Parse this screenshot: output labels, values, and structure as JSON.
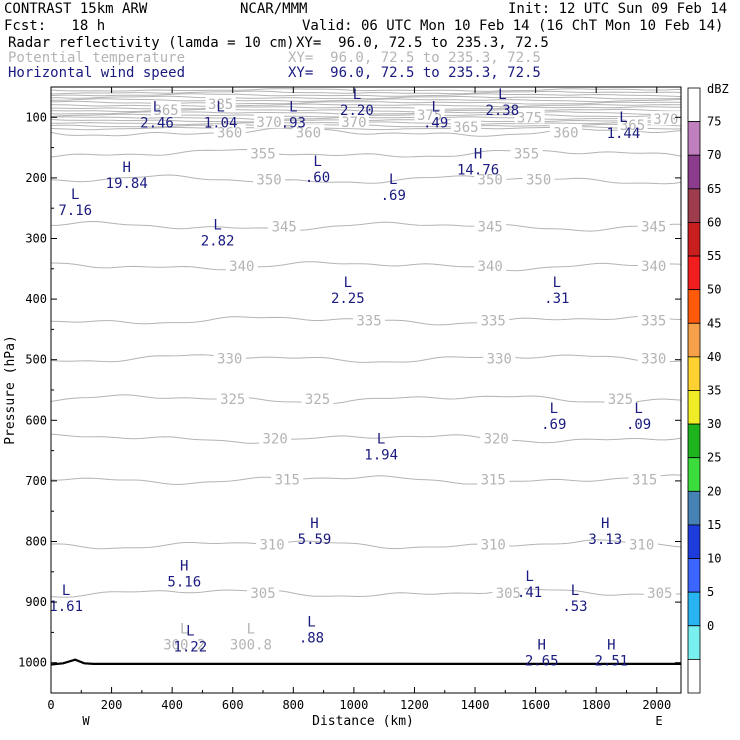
{
  "header": {
    "left_line1": "CONTRAST 15km ARW",
    "center_line1": "NCAR/MMM",
    "right_line1": "Init: 12 UTC Sun 09 Feb 14",
    "left_line2": "Fcst:   18 h",
    "right_line2": "Valid: 06 UTC Mon 10 Feb 14 (16 ChT Mon 10 Feb 14)"
  },
  "fields": [
    {
      "name": "Radar reflectivity (lamda = 10 cm)",
      "xy": "XY=  96.0, 72.5 to 235.3, 72.5",
      "color": "#000000"
    },
    {
      "name": "Potential temperature",
      "xy": "XY=  96.0, 72.5 to 235.3, 72.5",
      "color": "#b4b4b4"
    },
    {
      "name": "Horizontal wind speed",
      "xy": "XY=  96.0, 72.5 to 235.3, 72.5",
      "color": "#1a1a80"
    }
  ],
  "chart_data": {
    "type": "cross-section",
    "xlabel": "Distance (km)",
    "ylabel": "Pressure (hPa)",
    "xlim": [
      0,
      2080
    ],
    "ylim": [
      1050,
      50
    ],
    "x_ticks": [
      0,
      200,
      400,
      600,
      800,
      1000,
      1200,
      1400,
      1600,
      1800,
      2000
    ],
    "y_ticks": [
      100,
      200,
      300,
      400,
      500,
      600,
      700,
      800,
      900,
      1000
    ],
    "x_end_labels": {
      "left": "W",
      "right": "E"
    },
    "isentropes": [
      {
        "theta": 360,
        "p": 125,
        "labels": [
          {
            "x": 590,
            "text": "360"
          },
          {
            "x": 850,
            "text": "360"
          },
          {
            "x": 1700,
            "text": "360"
          }
        ]
      },
      {
        "theta": 355,
        "p": 160,
        "labels": [
          {
            "x": 700,
            "text": "355"
          },
          {
            "x": 1570,
            "text": "355"
          }
        ]
      },
      {
        "theta": 350,
        "p": 203,
        "labels": [
          {
            "x": 720,
            "text": "350"
          },
          {
            "x": 1450,
            "text": "350"
          },
          {
            "x": 1610,
            "text": "350"
          }
        ]
      },
      {
        "theta": 345,
        "p": 280,
        "labels": [
          {
            "x": 770,
            "text": "345"
          },
          {
            "x": 1450,
            "text": "345"
          },
          {
            "x": 1990,
            "text": "345"
          }
        ]
      },
      {
        "theta": 340,
        "p": 345,
        "labels": [
          {
            "x": 630,
            "text": "340"
          },
          {
            "x": 1450,
            "text": "340"
          },
          {
            "x": 1990,
            "text": "340"
          }
        ]
      },
      {
        "theta": 335,
        "p": 435,
        "labels": [
          {
            "x": 1050,
            "text": "335"
          },
          {
            "x": 1460,
            "text": "335"
          },
          {
            "x": 1990,
            "text": "335"
          }
        ]
      },
      {
        "theta": 330,
        "p": 498,
        "labels": [
          {
            "x": 590,
            "text": "330"
          },
          {
            "x": 1480,
            "text": "330"
          },
          {
            "x": 1990,
            "text": "330"
          }
        ]
      },
      {
        "theta": 325,
        "p": 565,
        "labels": [
          {
            "x": 600,
            "text": "325"
          },
          {
            "x": 880,
            "text": "325"
          },
          {
            "x": 1880,
            "text": "325"
          }
        ]
      },
      {
        "theta": 320,
        "p": 630,
        "labels": [
          {
            "x": 740,
            "text": "320"
          },
          {
            "x": 1470,
            "text": "320"
          }
        ]
      },
      {
        "theta": 315,
        "p": 698,
        "labels": [
          {
            "x": 780,
            "text": "315"
          },
          {
            "x": 1460,
            "text": "315"
          },
          {
            "x": 1960,
            "text": "315"
          }
        ]
      },
      {
        "theta": 310,
        "p": 805,
        "labels": [
          {
            "x": 730,
            "text": "310"
          },
          {
            "x": 1460,
            "text": "310"
          },
          {
            "x": 1950,
            "text": "310"
          }
        ]
      },
      {
        "theta": 305,
        "p": 885,
        "labels": [
          {
            "x": 700,
            "text": "305"
          },
          {
            "x": 1510,
            "text": "305"
          },
          {
            "x": 2010,
            "text": "305"
          }
        ]
      }
    ],
    "top_theta_labels": [
      {
        "x": 560,
        "p": 78,
        "text": "385"
      },
      {
        "x": 380,
        "p": 88,
        "text": "365"
      },
      {
        "x": 720,
        "p": 108,
        "text": "370"
      },
      {
        "x": 1000,
        "p": 108,
        "text": "370"
      },
      {
        "x": 1250,
        "p": 96,
        "text": "375"
      },
      {
        "x": 1370,
        "p": 116,
        "text": "365"
      },
      {
        "x": 1580,
        "p": 100,
        "text": "375"
      },
      {
        "x": 2030,
        "p": 103,
        "text": "370"
      },
      {
        "x": 1920,
        "p": 113,
        "text": "365"
      }
    ],
    "extrema_theta": [
      {
        "x": 440,
        "p": 962,
        "text": "300.2",
        "mark": "L"
      },
      {
        "x": 660,
        "p": 962,
        "text": "300.8",
        "mark": "L"
      }
    ],
    "extrema_wind": [
      {
        "mark": "L",
        "x": 350,
        "p": 95,
        "value": "2.46"
      },
      {
        "mark": "L",
        "x": 560,
        "p": 95,
        "value": "1.04"
      },
      {
        "mark": "L",
        "x": 800,
        "p": 95,
        "value": ".93"
      },
      {
        "mark": "L",
        "x": 1010,
        "p": 75,
        "value": "2.20"
      },
      {
        "mark": "L",
        "x": 1270,
        "p": 95,
        "value": ".49"
      },
      {
        "mark": "L",
        "x": 1490,
        "p": 75,
        "value": "2.38"
      },
      {
        "mark": "L",
        "x": 1890,
        "p": 113,
        "value": "1.44"
      },
      {
        "mark": "H",
        "x": 1410,
        "p": 173,
        "value": "14.76"
      },
      {
        "mark": "H",
        "x": 250,
        "p": 195,
        "value": "19.84"
      },
      {
        "mark": "L",
        "x": 880,
        "p": 185,
        "value": ".60"
      },
      {
        "mark": "L",
        "x": 1130,
        "p": 215,
        "value": ".69"
      },
      {
        "mark": "L",
        "x": 80,
        "p": 240,
        "value": "7.16"
      },
      {
        "mark": "L",
        "x": 550,
        "p": 290,
        "value": "2.82"
      },
      {
        "mark": "L",
        "x": 980,
        "p": 385,
        "value": "2.25"
      },
      {
        "mark": "L",
        "x": 1670,
        "p": 385,
        "value": ".31"
      },
      {
        "mark": "L",
        "x": 1660,
        "p": 593,
        "value": ".69"
      },
      {
        "mark": "L",
        "x": 1940,
        "p": 593,
        "value": ".09"
      },
      {
        "mark": "L",
        "x": 1090,
        "p": 643,
        "value": "1.94"
      },
      {
        "mark": "H",
        "x": 870,
        "p": 783,
        "value": "5.59"
      },
      {
        "mark": "H",
        "x": 1830,
        "p": 783,
        "value": "3.13"
      },
      {
        "mark": "H",
        "x": 440,
        "p": 853,
        "value": "5.16"
      },
      {
        "mark": "L",
        "x": 1580,
        "p": 870,
        "value": ".41"
      },
      {
        "mark": "L",
        "x": 1730,
        "p": 893,
        "value": ".53"
      },
      {
        "mark": "L",
        "x": 50,
        "p": 893,
        "value": "1.61"
      },
      {
        "mark": "L",
        "x": 860,
        "p": 945,
        "value": ".88"
      },
      {
        "mark": "L",
        "x": 460,
        "p": 960,
        "value": "1.22"
      },
      {
        "mark": "H",
        "x": 1620,
        "p": 983,
        "value": "2.65"
      },
      {
        "mark": "H",
        "x": 1850,
        "p": 983,
        "value": "2.51"
      }
    ],
    "terrain": [
      [
        0,
        1003
      ],
      [
        40,
        1001
      ],
      [
        80,
        995
      ],
      [
        110,
        1001
      ],
      [
        140,
        1002
      ],
      [
        400,
        1002
      ],
      [
        1200,
        1002
      ],
      [
        2080,
        1002
      ]
    ],
    "colorbar": {
      "unit": "dBZ",
      "labels": [
        "75",
        "70",
        "65",
        "60",
        "55",
        "50",
        "45",
        "40",
        "35",
        "30",
        "25",
        "20",
        "15",
        "10",
        "5",
        "0"
      ],
      "colors": [
        "#ffffff",
        "#c080c0",
        "#8c3c8c",
        "#9c3c4c",
        "#c81e1e",
        "#f01e1e",
        "#ff5a0a",
        "#f6a04a",
        "#ffd232",
        "#f0ec28",
        "#1eb41e",
        "#3cdc3c",
        "#4682b4",
        "#1e3cdc",
        "#3c64ff",
        "#28b4f0",
        "#78f0f0",
        "#ffffff"
      ]
    }
  }
}
